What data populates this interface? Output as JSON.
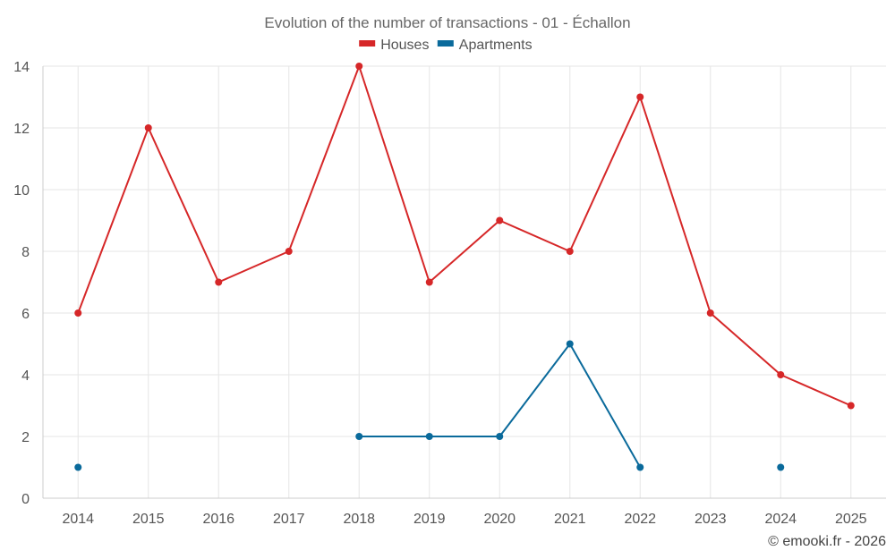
{
  "chart_data": {
    "type": "line",
    "title": "Evolution of the number of transactions - 01 - Échallon",
    "categories": [
      "2014",
      "2015",
      "2016",
      "2017",
      "2018",
      "2019",
      "2020",
      "2021",
      "2022",
      "2023",
      "2024",
      "2025"
    ],
    "series": [
      {
        "name": "Houses",
        "color": "#d62728",
        "values": [
          6,
          12,
          7,
          8,
          14,
          7,
          9,
          8,
          13,
          6,
          4,
          3
        ]
      },
      {
        "name": "Apartments",
        "color": "#0a6a9b",
        "values": [
          1,
          null,
          null,
          null,
          2,
          2,
          2,
          5,
          1,
          null,
          1,
          null
        ]
      }
    ],
    "ylim": [
      0,
      14
    ],
    "yticks": [
      0,
      2,
      4,
      6,
      8,
      10,
      12,
      14
    ],
    "grid": true,
    "legend": "top-center"
  },
  "credit": "© emooki.fr - 2026"
}
